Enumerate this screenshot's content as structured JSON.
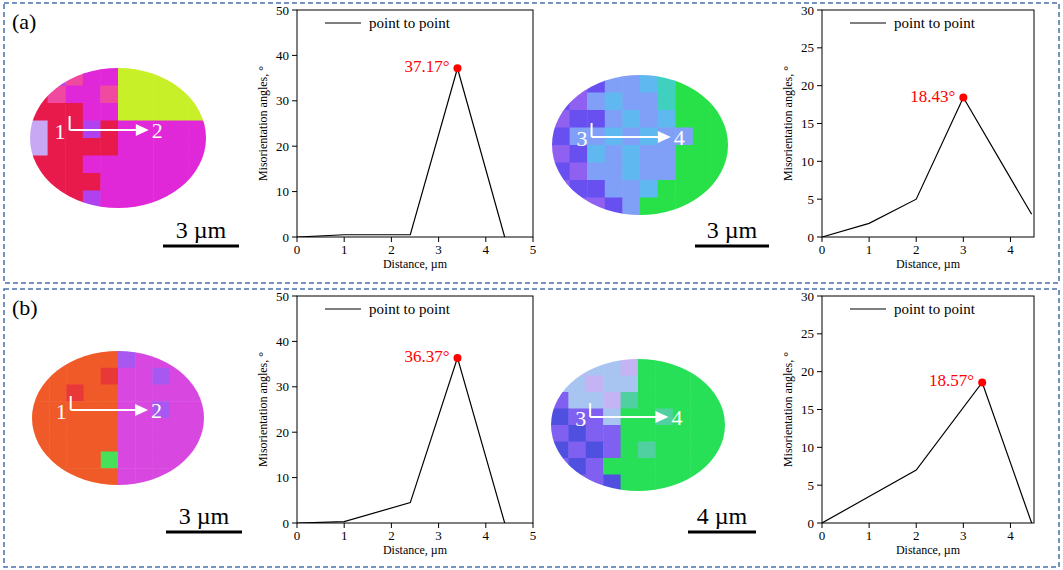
{
  "panels": [
    {
      "label": "(a)"
    },
    {
      "label": "(b)"
    }
  ],
  "maps": [
    {
      "start": "1",
      "end": "2",
      "scale_bar": "3 µm",
      "cells": [
        [
          "#b040f0",
          "#b040f0",
          "#f04aa0",
          "#e028d8",
          "#e028d8",
          "#c8f028",
          "#c8f028",
          "#c8f028",
          "#c8f028",
          "#c8f028"
        ],
        [
          "#e81a4c",
          "#f04aa0",
          "#e028d8",
          "#e028d8",
          "#f04aa0",
          "#c8f028",
          "#c8f028",
          "#c8f028",
          "#c8f028",
          "#c8f028"
        ],
        [
          "#e81a4c",
          "#e81a4c",
          "#e81a4c",
          "#e028d8",
          "#e028d8",
          "#c8f028",
          "#c8f028",
          "#c8f028",
          "#c8f028",
          "#c8f028"
        ],
        [
          "#c8a8f4",
          "#e81a4c",
          "#e81a4c",
          "#b040f0",
          "#e81a4c",
          "#e028d8",
          "#e028d8",
          "#e028d8",
          "#e028d8",
          "#e028d8"
        ],
        [
          "#c8a8f4",
          "#e81a4c",
          "#e81a4c",
          "#e81a4c",
          "#e81a4c",
          "#e028d8",
          "#e028d8",
          "#e028d8",
          "#e028d8",
          "#e028d8"
        ],
        [
          "#e81a4c",
          "#e81a4c",
          "#e81a4c",
          "#e028d8",
          "#e028d8",
          "#e028d8",
          "#e028d8",
          "#e028d8",
          "#e028d8",
          "#e028d8"
        ],
        [
          "#e81a4c",
          "#e81a4c",
          "#e81a4c",
          "#e81a4c",
          "#e028d8",
          "#e028d8",
          "#e028d8",
          "#e028d8",
          "#e028d8",
          "#e028d8"
        ],
        [
          "#c8a8f4",
          "#e81a4c",
          "#e81a4c",
          "#b040f0",
          "#e028d8",
          "#e028d8",
          "#e028d8",
          "#e028d8",
          "#e028d8",
          "#e028d8"
        ]
      ]
    },
    {
      "start": "3",
      "end": "4",
      "scale_bar": "3 µm",
      "cells": [
        [
          "#9060f0",
          "#9060f0",
          "#6850f0",
          "#80a0f8",
          "#80a0f8",
          "#60b8f0",
          "#40d0c0",
          "#28e048",
          "#28e048",
          "#28e048"
        ],
        [
          "#6850f0",
          "#9060f0",
          "#80a0f8",
          "#60b8f0",
          "#80a0f8",
          "#80a0f8",
          "#40d0c0",
          "#28e048",
          "#28e048",
          "#28e048"
        ],
        [
          "#9060f0",
          "#6850f0",
          "#6850f0",
          "#80a0f8",
          "#60b8f0",
          "#80a0f8",
          "#60b8f0",
          "#28e048",
          "#28e048",
          "#28e048"
        ],
        [
          "#6850f0",
          "#80a0f8",
          "#80a0f8",
          "#60b8f0",
          "#80a0f8",
          "#60b8f0",
          "#80a0f8",
          "#80a0f8",
          "#28e048",
          "#28e048"
        ],
        [
          "#9060f0",
          "#6850f0",
          "#60b8f0",
          "#80a0f8",
          "#60b8f0",
          "#80a0f8",
          "#80a0f8",
          "#28e048",
          "#28e048",
          "#28e048"
        ],
        [
          "#6850f0",
          "#9060f0",
          "#80a0f8",
          "#80a0f8",
          "#60b8f0",
          "#80a0f8",
          "#80a0f8",
          "#28e048",
          "#28e048",
          "#28e048"
        ],
        [
          "#9060f0",
          "#6850f0",
          "#6850f0",
          "#80a0f8",
          "#80a0f8",
          "#60b8f0",
          "#28e048",
          "#28e048",
          "#28e048",
          "#28e048"
        ],
        [
          "#6850f0",
          "#9060f0",
          "#9060f0",
          "#6850f0",
          "#80a0f8",
          "#28e048",
          "#28e048",
          "#28e048",
          "#28e048",
          "#28e048"
        ]
      ]
    },
    {
      "start": "1",
      "end": "2",
      "scale_bar": "3 µm",
      "cells": [
        [
          "#f05a28",
          "#f05a28",
          "#f05a28",
          "#f05a28",
          "#f05a28",
          "#a858f0",
          "#d848e0",
          "#d848e0",
          "#d848e0",
          "#a858f0"
        ],
        [
          "#f05a28",
          "#f05a28",
          "#f05a28",
          "#f05a28",
          "#e83838",
          "#d848e0",
          "#d848e0",
          "#a858f0",
          "#d848e0",
          "#d848e0"
        ],
        [
          "#f05a28",
          "#f05a28",
          "#e83838",
          "#f05a28",
          "#f05a28",
          "#d848e0",
          "#d848e0",
          "#d848e0",
          "#d848e0",
          "#d848e0"
        ],
        [
          "#f05a28",
          "#f05a28",
          "#f05a28",
          "#f05a28",
          "#f05a28",
          "#d848e0",
          "#d848e0",
          "#a858f0",
          "#d848e0",
          "#d848e0"
        ],
        [
          "#f05a28",
          "#f05a28",
          "#f05a28",
          "#f05a28",
          "#f05a28",
          "#d848e0",
          "#d848e0",
          "#d848e0",
          "#d848e0",
          "#d848e0"
        ],
        [
          "#f05a28",
          "#f05a28",
          "#f05a28",
          "#f05a28",
          "#f05a28",
          "#d848e0",
          "#d848e0",
          "#d848e0",
          "#d848e0",
          "#d848e0"
        ],
        [
          "#f05a28",
          "#f05a28",
          "#f05a28",
          "#f05a28",
          "#48e058",
          "#d848e0",
          "#d848e0",
          "#d848e0",
          "#d848e0",
          "#d848e0"
        ],
        [
          "#f05a28",
          "#f05a28",
          "#f05a28",
          "#f05a28",
          "#f05a28",
          "#d848e0",
          "#d848e0",
          "#d848e0",
          "#d848e0",
          "#d848e0"
        ]
      ]
    },
    {
      "start": "3",
      "end": "4",
      "scale_bar": "4 µm",
      "cells": [
        [
          "#a8c4f0",
          "#c4b4f4",
          "#a8c4f0",
          "#a8c4f0",
          "#c4b4f4",
          "#28e058",
          "#28e058",
          "#28e058",
          "#28e058",
          "#28e058"
        ],
        [
          "#a8c4f0",
          "#a8c4f0",
          "#c4b4f4",
          "#a8c4f0",
          "#a8c4f0",
          "#28e058",
          "#28e058",
          "#28e058",
          "#28e058",
          "#28e058"
        ],
        [
          "#8060f0",
          "#a8c4f0",
          "#a8c4f0",
          "#c4b4f4",
          "#50d0a0",
          "#28e058",
          "#28e058",
          "#28e058",
          "#28e058",
          "#28e058"
        ],
        [
          "#5050e0",
          "#8060f0",
          "#8060f0",
          "#a8c4f0",
          "#28e058",
          "#28e058",
          "#50d0a0",
          "#28e058",
          "#28e058",
          "#28e058"
        ],
        [
          "#8060f0",
          "#5050e0",
          "#8060f0",
          "#8060f0",
          "#28e058",
          "#28e058",
          "#28e058",
          "#28e058",
          "#28e058",
          "#28e058"
        ],
        [
          "#5050e0",
          "#8060f0",
          "#5050e0",
          "#8060f0",
          "#28e058",
          "#50d0a0",
          "#28e058",
          "#28e058",
          "#28e058",
          "#28e058"
        ],
        [
          "#8060f0",
          "#5050e0",
          "#8060f0",
          "#28e058",
          "#28e058",
          "#28e058",
          "#28e058",
          "#28e058",
          "#28e058",
          "#28e058"
        ],
        [
          "#5050e0",
          "#8060f0",
          "#8060f0",
          "#5050e0",
          "#28e058",
          "#28e058",
          "#28e058",
          "#28e058",
          "#28e058",
          "#28e058"
        ]
      ]
    }
  ],
  "chart_data": [
    {
      "type": "line",
      "x_label": "Distance, µm",
      "y_label": "Misorientation angles, °",
      "x": [
        0,
        1,
        2.4,
        3.4,
        4.4
      ],
      "series": [
        {
          "name": "point to point",
          "color": "#000000",
          "values": [
            0,
            0.5,
            0.5,
            37.17,
            0
          ]
        }
      ],
      "xlim": [
        0,
        5
      ],
      "ylim": [
        0,
        50
      ],
      "xticks": [
        0,
        1,
        2,
        3,
        4,
        5
      ],
      "yticks": [
        0,
        10,
        20,
        30,
        40,
        50
      ],
      "grid": false,
      "legend": "upper left",
      "annotations": [
        {
          "text": "37.17°",
          "x": 3.4,
          "y": 37.17,
          "color": "#ff0000"
        }
      ]
    },
    {
      "type": "line",
      "x_label": "Distance, µm",
      "y_label": "Misorientation angles, °",
      "x": [
        0,
        1,
        2,
        3,
        4.45
      ],
      "series": [
        {
          "name": "point to point",
          "color": "#000000",
          "values": [
            0,
            1.8,
            5,
            18.43,
            3
          ]
        }
      ],
      "xlim": [
        0,
        4.5
      ],
      "ylim": [
        0,
        30
      ],
      "xticks": [
        0,
        1,
        2,
        3,
        4
      ],
      "yticks": [
        0,
        5,
        10,
        15,
        20,
        25,
        30
      ],
      "grid": false,
      "legend": "upper left",
      "annotations": [
        {
          "text": "18.43°",
          "x": 3,
          "y": 18.43,
          "color": "#ff0000"
        }
      ]
    },
    {
      "type": "line",
      "x_label": "Distance, µm",
      "y_label": "Misorientation angles, °",
      "x": [
        0,
        1,
        2.4,
        3.4,
        4.4
      ],
      "series": [
        {
          "name": "point to point",
          "color": "#000000",
          "values": [
            0,
            0.3,
            4.5,
            36.37,
            0
          ]
        }
      ],
      "xlim": [
        0,
        5
      ],
      "ylim": [
        0,
        50
      ],
      "xticks": [
        0,
        1,
        2,
        3,
        4,
        5
      ],
      "yticks": [
        0,
        10,
        20,
        30,
        40,
        50
      ],
      "grid": false,
      "legend": "upper left",
      "annotations": [
        {
          "text": "36.37°",
          "x": 3.4,
          "y": 36.37,
          "color": "#ff0000"
        }
      ]
    },
    {
      "type": "line",
      "x_label": "Distance, µm",
      "y_label": "Misorientation angles, °",
      "x": [
        0,
        1,
        2,
        3.4,
        4.45
      ],
      "series": [
        {
          "name": "point to point",
          "color": "#000000",
          "values": [
            0,
            3.5,
            7,
            18.57,
            0
          ]
        }
      ],
      "xlim": [
        0,
        4.5
      ],
      "ylim": [
        0,
        30
      ],
      "xticks": [
        0,
        1,
        2,
        3,
        4
      ],
      "yticks": [
        0,
        5,
        10,
        15,
        20,
        25,
        30
      ],
      "grid": false,
      "legend": "upper left",
      "annotations": [
        {
          "text": "18.57°",
          "x": 3.4,
          "y": 18.57,
          "color": "#ff0000"
        }
      ]
    }
  ]
}
